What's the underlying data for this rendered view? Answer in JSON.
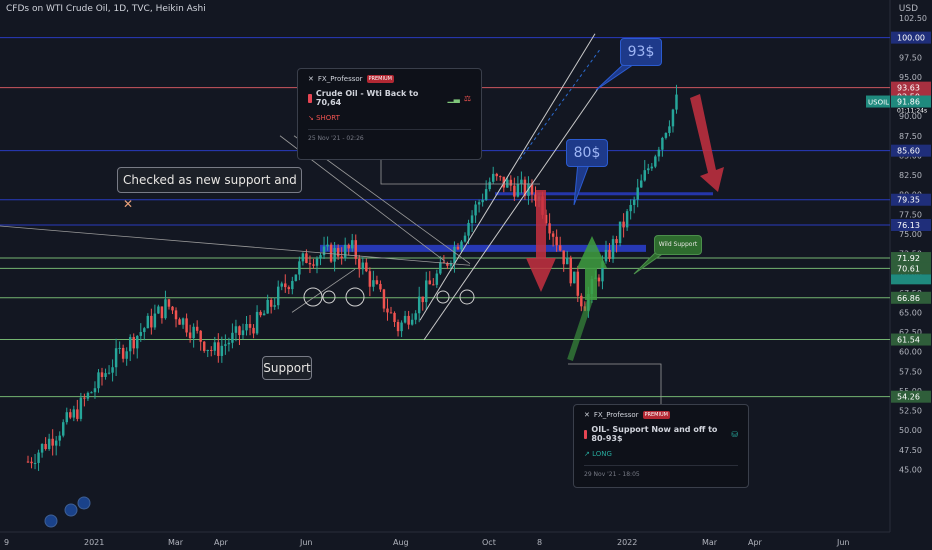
{
  "header": {
    "title": "CFDs on WTI Crude Oil, 1D, TVC, Heikin Ashi",
    "currency": "USD"
  },
  "ticker_label": "USOIL",
  "ticker_sublabel": "01:11:24s",
  "colors": {
    "bg": "#131722",
    "up": "#26a69a",
    "down": "#ef5350",
    "blue": "#2b3fd0",
    "green": "#7fc77a",
    "red": "#e57373"
  },
  "chart_data": {
    "type": "candlestick",
    "title": "CFDs on WTI Crude Oil, 1D, TVC, Heikin Ashi",
    "ylim": [
      44,
      104
    ],
    "y_ticks": [
      45,
      47.5,
      50,
      52.5,
      55,
      57.5,
      60,
      62.5,
      65,
      67.5,
      70,
      72.5,
      75,
      77.5,
      80,
      82.5,
      85,
      87.5,
      90,
      92.5,
      95,
      97.5,
      100,
      102.5
    ],
    "x_ticks": [
      "9",
      "2021",
      "Mar",
      "Apr",
      "Jun",
      "Aug",
      "Oct",
      "8",
      "2022",
      "Mar",
      "Apr",
      "Jun"
    ],
    "price_levels": [
      {
        "label": "100.00",
        "value": 100.0,
        "color": "#2b3fd0"
      },
      {
        "label": "93.63",
        "value": 93.63,
        "color": "#e05d66"
      },
      {
        "label": "92.50",
        "value": 92.5,
        "color": "#e05d66"
      },
      {
        "label": "91.86",
        "value": 91.86,
        "color": "#26a69a"
      },
      {
        "label": "85.60",
        "value": 85.6,
        "color": "#2b3fd0"
      },
      {
        "label": "79.35",
        "value": 79.35,
        "color": "#2b3fd0"
      },
      {
        "label": "76.13",
        "value": 76.13,
        "color": "#2b3fd0"
      },
      {
        "label": "71.92",
        "value": 71.92,
        "color": "#7fc77a"
      },
      {
        "label": "70.61",
        "value": 70.61,
        "color": "#7fc77a"
      },
      {
        "label": "66.86",
        "value": 66.86,
        "color": "#7fc77a"
      },
      {
        "label": "61.54",
        "value": 61.54,
        "color": "#7fc77a"
      },
      {
        "label": "54.26",
        "value": 54.26,
        "color": "#7fc77a"
      }
    ],
    "series_close_approx": [
      {
        "x": "Dec 2020",
        "y": 46
      },
      {
        "x": "Jan 2021",
        "y": 52
      },
      {
        "x": "Feb 2021",
        "y": 60
      },
      {
        "x": "Mar 2021",
        "y": 66
      },
      {
        "x": "Apr 2021",
        "y": 60
      },
      {
        "x": "May 2021",
        "y": 64
      },
      {
        "x": "Jun 2021",
        "y": 72
      },
      {
        "x": "Jul 2021",
        "y": 73
      },
      {
        "x": "Aug 2021",
        "y": 63
      },
      {
        "x": "Sep 2021",
        "y": 71
      },
      {
        "x": "Oct 2021",
        "y": 82
      },
      {
        "x": "Nov 2021",
        "y": 80
      },
      {
        "x": "Dec 2021",
        "y": 66
      },
      {
        "x": "Jan 2022",
        "y": 78
      },
      {
        "x": "Feb 2022",
        "y": 91.86
      }
    ]
  },
  "annotations": {
    "checked": "Checked as new support and",
    "support": "Support",
    "wild_support": "Wild Support",
    "target_93": "93$",
    "target_80": "80$"
  },
  "idea_short": {
    "author": "FX_Professor",
    "badge": "PREMIUM",
    "title": "Crude Oil - Wti Back to 70,64",
    "direction": "SHORT",
    "timestamp": "25 Nov '21 - 02:26"
  },
  "idea_long": {
    "author": "FX_Professor",
    "badge": "PREMIUM",
    "title": "OIL- Support Now and off to 80-93$",
    "direction": "LONG",
    "timestamp": "29 Nov '21 - 18:05"
  }
}
